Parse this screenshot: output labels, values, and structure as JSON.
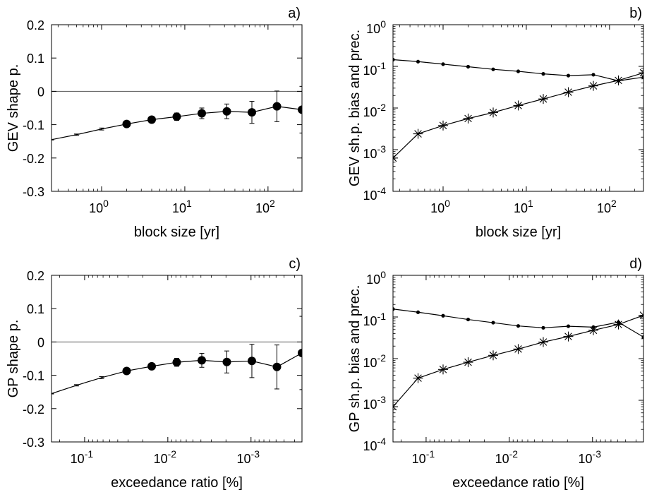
{
  "chart_data": [
    {
      "panel": "a)",
      "type": "line",
      "xscale": "log",
      "xlabel": "block size [yr]",
      "ylabel": "GEV shape p.",
      "xlim": [
        0.25,
        256
      ],
      "ylim": [
        -0.3,
        0.2
      ],
      "yticks": [
        0.2,
        0.1,
        0,
        -0.1,
        -0.2,
        -0.3
      ],
      "ytick_labels": [
        "0.2",
        "0.1",
        "0",
        "-0.1",
        "-0.2",
        "-0.3"
      ],
      "xticks": [
        {
          "value": 1,
          "base": "10",
          "exp": "0"
        },
        {
          "value": 10,
          "base": "10",
          "exp": "1"
        },
        {
          "value": 100,
          "base": "10",
          "exp": "2"
        }
      ],
      "reference_line": 0,
      "series": [
        {
          "x": [
            0.25,
            0.5,
            1,
            2,
            4,
            8,
            16,
            32,
            64,
            128,
            256
          ],
          "y": [
            -0.145,
            -0.13,
            -0.113,
            -0.098,
            -0.085,
            -0.076,
            -0.066,
            -0.06,
            -0.063,
            -0.045,
            -0.055
          ],
          "err": [
            0.001,
            0.002,
            0.003,
            0.004,
            0.007,
            0.011,
            0.016,
            0.022,
            0.033,
            0.046,
            0.07
          ],
          "marker": "filled-circle"
        }
      ]
    },
    {
      "panel": "b)",
      "type": "line",
      "xscale": "log",
      "yscale": "log",
      "xlabel": "block size [yr]",
      "ylabel": "GEV sh.p. bias and prec.",
      "xlim": [
        0.25,
        256
      ],
      "ylim": [
        0.0001,
        1
      ],
      "yticks": [
        {
          "value": 1,
          "base": "10",
          "exp": "0"
        },
        {
          "value": 0.1,
          "base": "10",
          "exp": "-1"
        },
        {
          "value": 0.01,
          "base": "10",
          "exp": "-2"
        },
        {
          "value": 0.001,
          "base": "10",
          "exp": "-3"
        },
        {
          "value": 0.0001,
          "base": "10",
          "exp": "-4"
        }
      ],
      "xticks": [
        {
          "value": 1,
          "base": "10",
          "exp": "0"
        },
        {
          "value": 10,
          "base": "10",
          "exp": "1"
        },
        {
          "value": 100,
          "base": "10",
          "exp": "2"
        }
      ],
      "series": [
        {
          "x": [
            0.25,
            0.5,
            1,
            2,
            4,
            8,
            16,
            32,
            64,
            128,
            256
          ],
          "y": [
            0.145,
            0.13,
            0.113,
            0.098,
            0.085,
            0.076,
            0.066,
            0.06,
            0.063,
            0.045,
            0.055
          ],
          "marker": "dot"
        },
        {
          "x": [
            0.25,
            0.5,
            1,
            2,
            4,
            8,
            16,
            32,
            64,
            128,
            256
          ],
          "y": [
            0.00063,
            0.0024,
            0.0038,
            0.0056,
            0.0078,
            0.0115,
            0.0165,
            0.024,
            0.034,
            0.046,
            0.07
          ],
          "marker": "asterisk"
        }
      ]
    },
    {
      "panel": "c)",
      "type": "line",
      "xscale": "log",
      "xreversed": true,
      "xlabel": "exceedance ratio [%]",
      "ylabel": "GP shape p.",
      "xlim": [
        0.25,
        0.000244
      ],
      "ylim": [
        -0.3,
        0.2
      ],
      "yticks": [
        0.2,
        0.1,
        0,
        -0.1,
        -0.2,
        -0.3
      ],
      "ytick_labels": [
        "0.2",
        "0.1",
        "0",
        "-0.1",
        "-0.2",
        "-0.3"
      ],
      "xticks": [
        {
          "value": 0.1,
          "base": "10",
          "exp": "-1"
        },
        {
          "value": 0.01,
          "base": "10",
          "exp": "-2"
        },
        {
          "value": 0.001,
          "base": "10",
          "exp": "-3"
        }
      ],
      "reference_line": 0,
      "series": [
        {
          "x": [
            0.25,
            0.125,
            0.0625,
            0.03125,
            0.015625,
            0.0078125,
            0.00390625,
            0.001953125,
            0.0009765625,
            0.00048828125,
            0.000244140625
          ],
          "y": [
            -0.155,
            -0.13,
            -0.107,
            -0.087,
            -0.073,
            -0.061,
            -0.055,
            -0.06,
            -0.057,
            -0.075,
            -0.033
          ],
          "err": [
            0.001,
            0.002,
            0.003,
            0.005,
            0.008,
            0.012,
            0.021,
            0.033,
            0.05,
            0.066,
            0.11
          ],
          "marker": "filled-circle"
        }
      ]
    },
    {
      "panel": "d)",
      "type": "line",
      "xscale": "log",
      "yscale": "log",
      "xreversed": true,
      "xlabel": "exceedance ratio [%]",
      "ylabel": "GP sh.p. bias and prec.",
      "xlim": [
        0.25,
        0.000244
      ],
      "ylim": [
        0.0001,
        1
      ],
      "yticks": [
        {
          "value": 1,
          "base": "10",
          "exp": "0"
        },
        {
          "value": 0.1,
          "base": "10",
          "exp": "-1"
        },
        {
          "value": 0.01,
          "base": "10",
          "exp": "-2"
        },
        {
          "value": 0.001,
          "base": "10",
          "exp": "-3"
        },
        {
          "value": 0.0001,
          "base": "10",
          "exp": "-4"
        }
      ],
      "xticks": [
        {
          "value": 0.1,
          "base": "10",
          "exp": "-1"
        },
        {
          "value": 0.01,
          "base": "10",
          "exp": "-2"
        },
        {
          "value": 0.001,
          "base": "10",
          "exp": "-3"
        }
      ],
      "series": [
        {
          "x": [
            0.25,
            0.125,
            0.0625,
            0.03125,
            0.015625,
            0.0078125,
            0.00390625,
            0.001953125,
            0.0009765625,
            0.00048828125,
            0.000244140625
          ],
          "y": [
            0.155,
            0.13,
            0.107,
            0.087,
            0.073,
            0.061,
            0.055,
            0.06,
            0.057,
            0.075,
            0.033
          ],
          "marker": "dot"
        },
        {
          "x": [
            0.25,
            0.125,
            0.0625,
            0.03125,
            0.015625,
            0.0078125,
            0.00390625,
            0.001953125,
            0.0009765625,
            0.00048828125,
            0.000244140625
          ],
          "y": [
            0.0007,
            0.0034,
            0.0055,
            0.0082,
            0.012,
            0.017,
            0.025,
            0.034,
            0.048,
            0.066,
            0.11
          ],
          "marker": "asterisk"
        }
      ]
    }
  ]
}
